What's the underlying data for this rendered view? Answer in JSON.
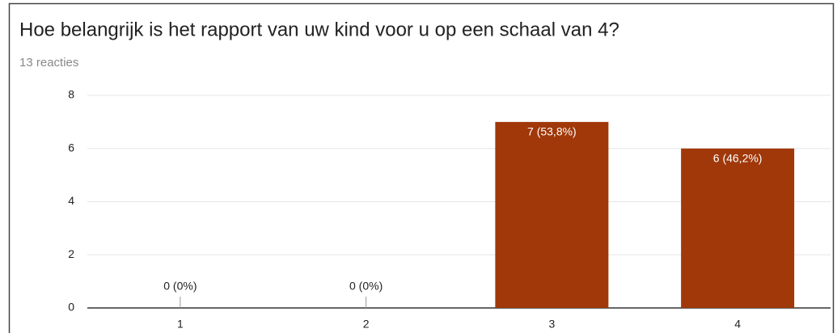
{
  "chart_data": {
    "type": "bar",
    "title": "Hoe belangrijk is het rapport van uw kind voor u op een schaal van 4?",
    "subtitle": "13 reacties",
    "categories": [
      "1",
      "2",
      "3",
      "4"
    ],
    "values": [
      0,
      0,
      7,
      6
    ],
    "value_labels": [
      "0 (0%)",
      "0 (0%)",
      "7 (53,8%)",
      "6 (46,2%)"
    ],
    "color": "#a0380a",
    "ylim": [
      0,
      8
    ],
    "yticks": [
      0,
      2,
      4,
      6,
      8
    ],
    "grid": true
  }
}
